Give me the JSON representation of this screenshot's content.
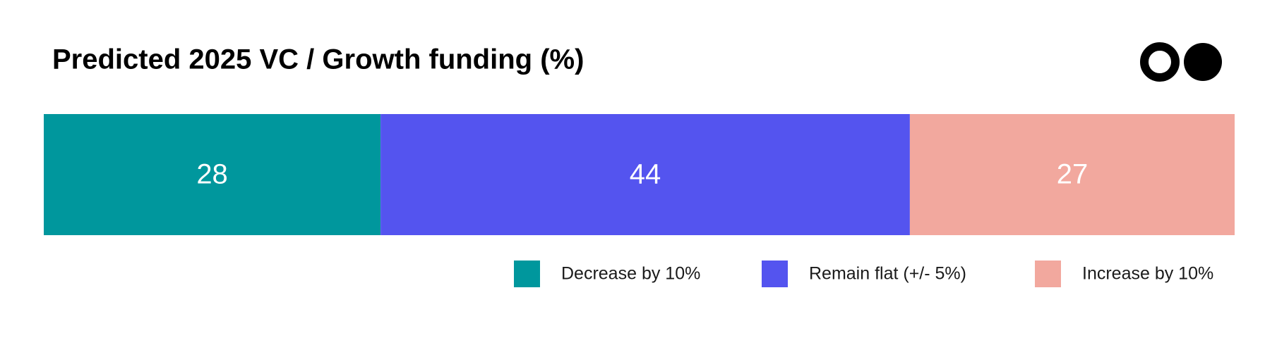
{
  "chart_data": {
    "type": "bar",
    "orientation": "horizontal",
    "stacked": true,
    "title": "Predicted 2025 VC / Growth funding (%)",
    "categories": [
      null
    ],
    "series": [
      {
        "name": "Decrease by 10%",
        "color": "#00979d",
        "values": [
          28
        ]
      },
      {
        "name": "Remain flat (+/- 5%)",
        "color": "#5454ef",
        "values": [
          44
        ]
      },
      {
        "name": "Increase by 10%",
        "color": "#f2a89e",
        "values": [
          27
        ]
      }
    ],
    "legend": "bottom-right"
  }
}
